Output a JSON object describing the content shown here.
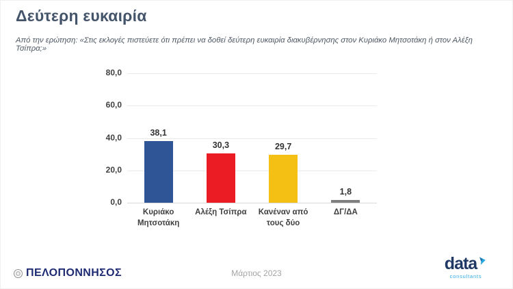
{
  "header": {
    "title": "Δεύτερη ευκαιρία",
    "subtitle": "Από την ερώτηση: «Στις εκλογές πιστεύετε ότι πρέπει να δοθεί δεύτερη ευκαιρία διακυβέρνησης στον Κυριάκο Μητσοτάκη ή στον Αλέξη Τσίπρα;»"
  },
  "chart_data": {
    "type": "bar",
    "categories": [
      "Κυριάκο Μητσοτάκη",
      "Αλέξη Τσίπρα",
      "Κανέναν από τους δύο",
      "ΔΓ/ΔΑ"
    ],
    "values": [
      38.1,
      30.3,
      29.7,
      1.8
    ],
    "value_labels": [
      "38,1",
      "30,3",
      "29,7",
      "1,8"
    ],
    "bar_colors": [
      "#2F5597",
      "#EC1C24",
      "#F3C013",
      "#7F7F7F"
    ],
    "title": "",
    "xlabel": "",
    "ylabel": "",
    "ylim": [
      0,
      80
    ],
    "yticks": [
      0,
      20,
      40,
      60,
      80
    ],
    "ytick_labels": [
      "0,0",
      "20,0",
      "40,0",
      "60,0",
      "80,0"
    ],
    "grid": true,
    "legend": false
  },
  "footer": {
    "newspaper": "ΠΕΛΟΠΟΝΝΗΣΟΣ",
    "date": "Μάρτιος 2023",
    "data_logo": {
      "name": "data",
      "tagline": "consultants"
    }
  },
  "icons": {
    "peloponnisos_emblem": "circular-seal",
    "data_arrow": "two-tone-blue-arrow"
  },
  "colors": {
    "title": "#44546A",
    "axis_text": "#3F3F3F",
    "gridline": "#EAEAEA",
    "newspaper_navy": "#1E2B72",
    "data_navy": "#1F3864",
    "data_accent": "#2BA8DF"
  }
}
